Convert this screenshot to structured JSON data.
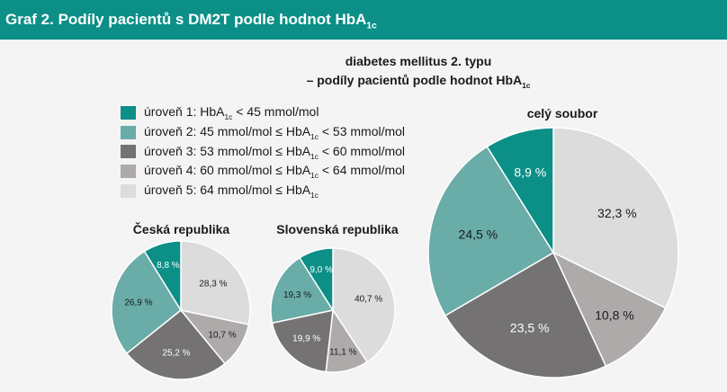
{
  "header": {
    "title_main": "Graf 2. Podíly pacientů s DM2T podle hodnot HbA",
    "title_sub": "1c"
  },
  "chart_title": {
    "line1": "diabetes mellitus 2. typu",
    "line2_main": "– podíly pacientů podle hodnot HbA",
    "line2_sub": "1c"
  },
  "legend": [
    {
      "pre": "úroveň 1: HbA",
      "sub": "1c",
      "post": " < 45 mmol/mol",
      "color": "#0b8f87"
    },
    {
      "pre": "úroveň 2: 45 mmol/mol ≤ HbA",
      "sub": "1c",
      "post": " <  53 mmol/mol",
      "color": "#6aaca8"
    },
    {
      "pre": "úroveň 3: 53 mmol/mol ≤ HbA",
      "sub": "1c",
      "post": " < 60 mmol/mol",
      "color": "#747272"
    },
    {
      "pre": "úroveň 4: 60 mmol/mol ≤ HbA",
      "sub": "1c",
      "post": " < 64 mmol/mol",
      "color": "#aeaaaa"
    },
    {
      "pre": "úroveň 5: 64 mmol/mol ≤ HbA",
      "sub": "1c",
      "post": "",
      "color": "#dcdcdc"
    }
  ],
  "chart_data": [
    {
      "type": "pie",
      "title": "Česká republika",
      "categories": [
        "úroveň 1",
        "úroveň 2",
        "úroveň 3",
        "úroveň 4",
        "úroveň 5"
      ],
      "values": [
        8.8,
        26.9,
        25.2,
        10.7,
        28.3
      ],
      "labels": [
        "8,8 %",
        "26,9 %",
        "25,2 %",
        "10,7 %",
        "28,3 %"
      ]
    },
    {
      "type": "pie",
      "title": "Slovenská republika",
      "categories": [
        "úroveň 1",
        "úroveň 2",
        "úroveň 3",
        "úroveň 4",
        "úroveň 5"
      ],
      "values": [
        9.0,
        19.3,
        19.9,
        11.1,
        40.7
      ],
      "labels": [
        "9,0 %",
        "19,3 %",
        "19,9 %",
        "11,1 %",
        "40,7 %"
      ]
    },
    {
      "type": "pie",
      "title": "celý soubor",
      "categories": [
        "úroveň 1",
        "úroveň 2",
        "úroveň 3",
        "úroveň 4",
        "úroveň 5"
      ],
      "values": [
        8.9,
        24.5,
        23.5,
        10.8,
        32.3
      ],
      "labels": [
        "8,9 %",
        "24,5 %",
        "23,5 %",
        "10,8 %",
        "32,3 %"
      ]
    }
  ]
}
